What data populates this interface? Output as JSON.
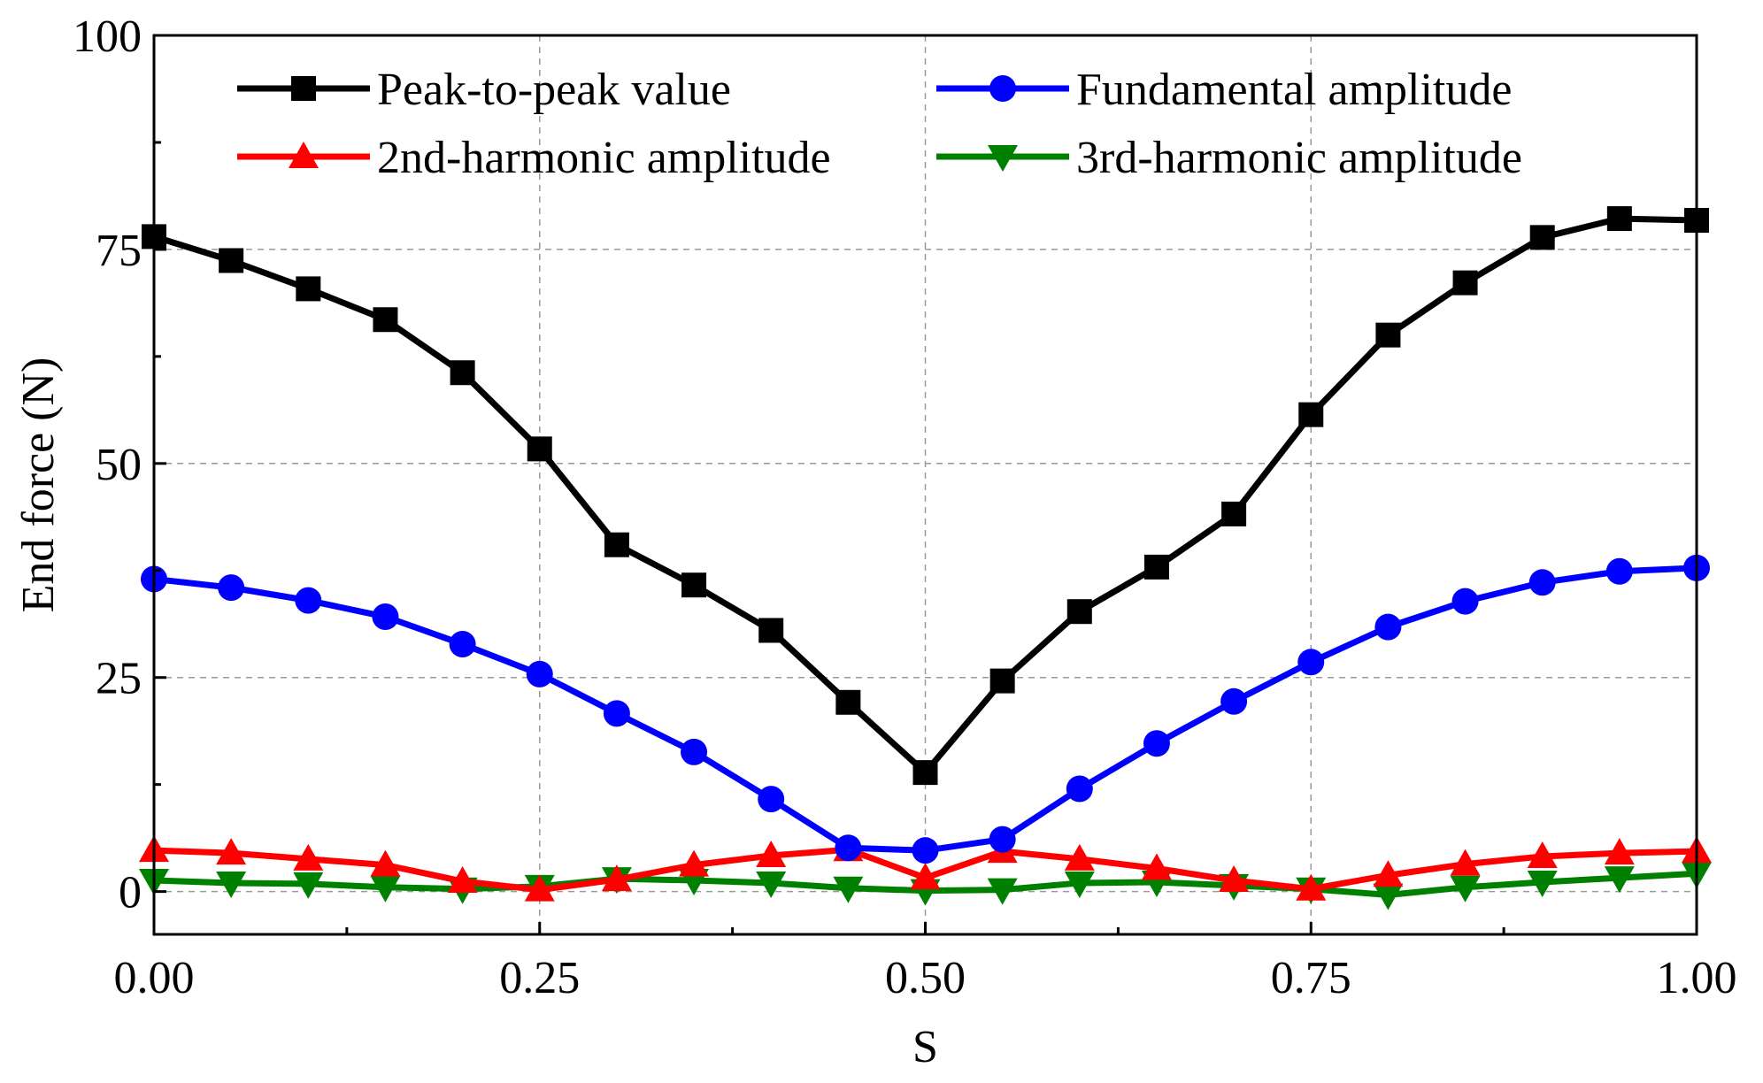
{
  "chart_data": {
    "type": "line",
    "title": "",
    "xlabel": "S",
    "ylabel": "End force (N)",
    "xlim": [
      0,
      1
    ],
    "ylim": [
      -5,
      100
    ],
    "xticks": [
      "0.00",
      "0.25",
      "0.50",
      "0.75",
      "1.00"
    ],
    "xtick_values": [
      0,
      0.25,
      0.5,
      0.75,
      1.0
    ],
    "yticks": [
      "0",
      "25",
      "50",
      "75",
      "100"
    ],
    "ytick_values": [
      0,
      25,
      50,
      75,
      100
    ],
    "grid": true,
    "legend_position": "top",
    "x": [
      0,
      0.05,
      0.1,
      0.15,
      0.2,
      0.25,
      0.3,
      0.35,
      0.4,
      0.45,
      0.5,
      0.55,
      0.6,
      0.65,
      0.7,
      0.75,
      0.8,
      0.85,
      0.9,
      0.95,
      1.0
    ],
    "series": [
      {
        "name": "Peak-to-peak value",
        "color": "#000000",
        "marker": "square",
        "values": [
          76.5,
          73.7,
          70.4,
          66.8,
          60.6,
          51.7,
          40.5,
          35.8,
          30.5,
          22.1,
          13.9,
          24.6,
          32.7,
          37.9,
          44.1,
          55.7,
          65.0,
          71.1,
          76.4,
          78.6,
          78.4
        ]
      },
      {
        "name": "Fundamental amplitude",
        "color": "#0000ff",
        "marker": "circle",
        "values": [
          36.5,
          35.5,
          34.0,
          32.1,
          28.9,
          25.4,
          20.8,
          16.3,
          10.8,
          5.1,
          4.8,
          6.1,
          12.0,
          17.3,
          22.2,
          26.8,
          30.9,
          33.9,
          36.1,
          37.4,
          37.8
        ]
      },
      {
        "name": "2nd-harmonic amplitude",
        "color": "#ff0000",
        "marker": "triangle-up",
        "values": [
          4.8,
          4.5,
          3.8,
          3.1,
          1.2,
          0.2,
          1.4,
          3.1,
          4.2,
          4.9,
          1.6,
          4.7,
          3.8,
          2.7,
          1.3,
          0.3,
          1.9,
          3.2,
          4.1,
          4.5,
          4.7
        ]
      },
      {
        "name": "3rd-harmonic amplitude",
        "color": "#008000",
        "marker": "triangle-down",
        "values": [
          1.3,
          1.0,
          0.9,
          0.5,
          0.3,
          0.6,
          1.5,
          1.3,
          1.0,
          0.4,
          0.1,
          0.2,
          1.0,
          1.1,
          0.7,
          0.3,
          -0.4,
          0.5,
          1.1,
          1.6,
          2.1
        ]
      }
    ]
  }
}
